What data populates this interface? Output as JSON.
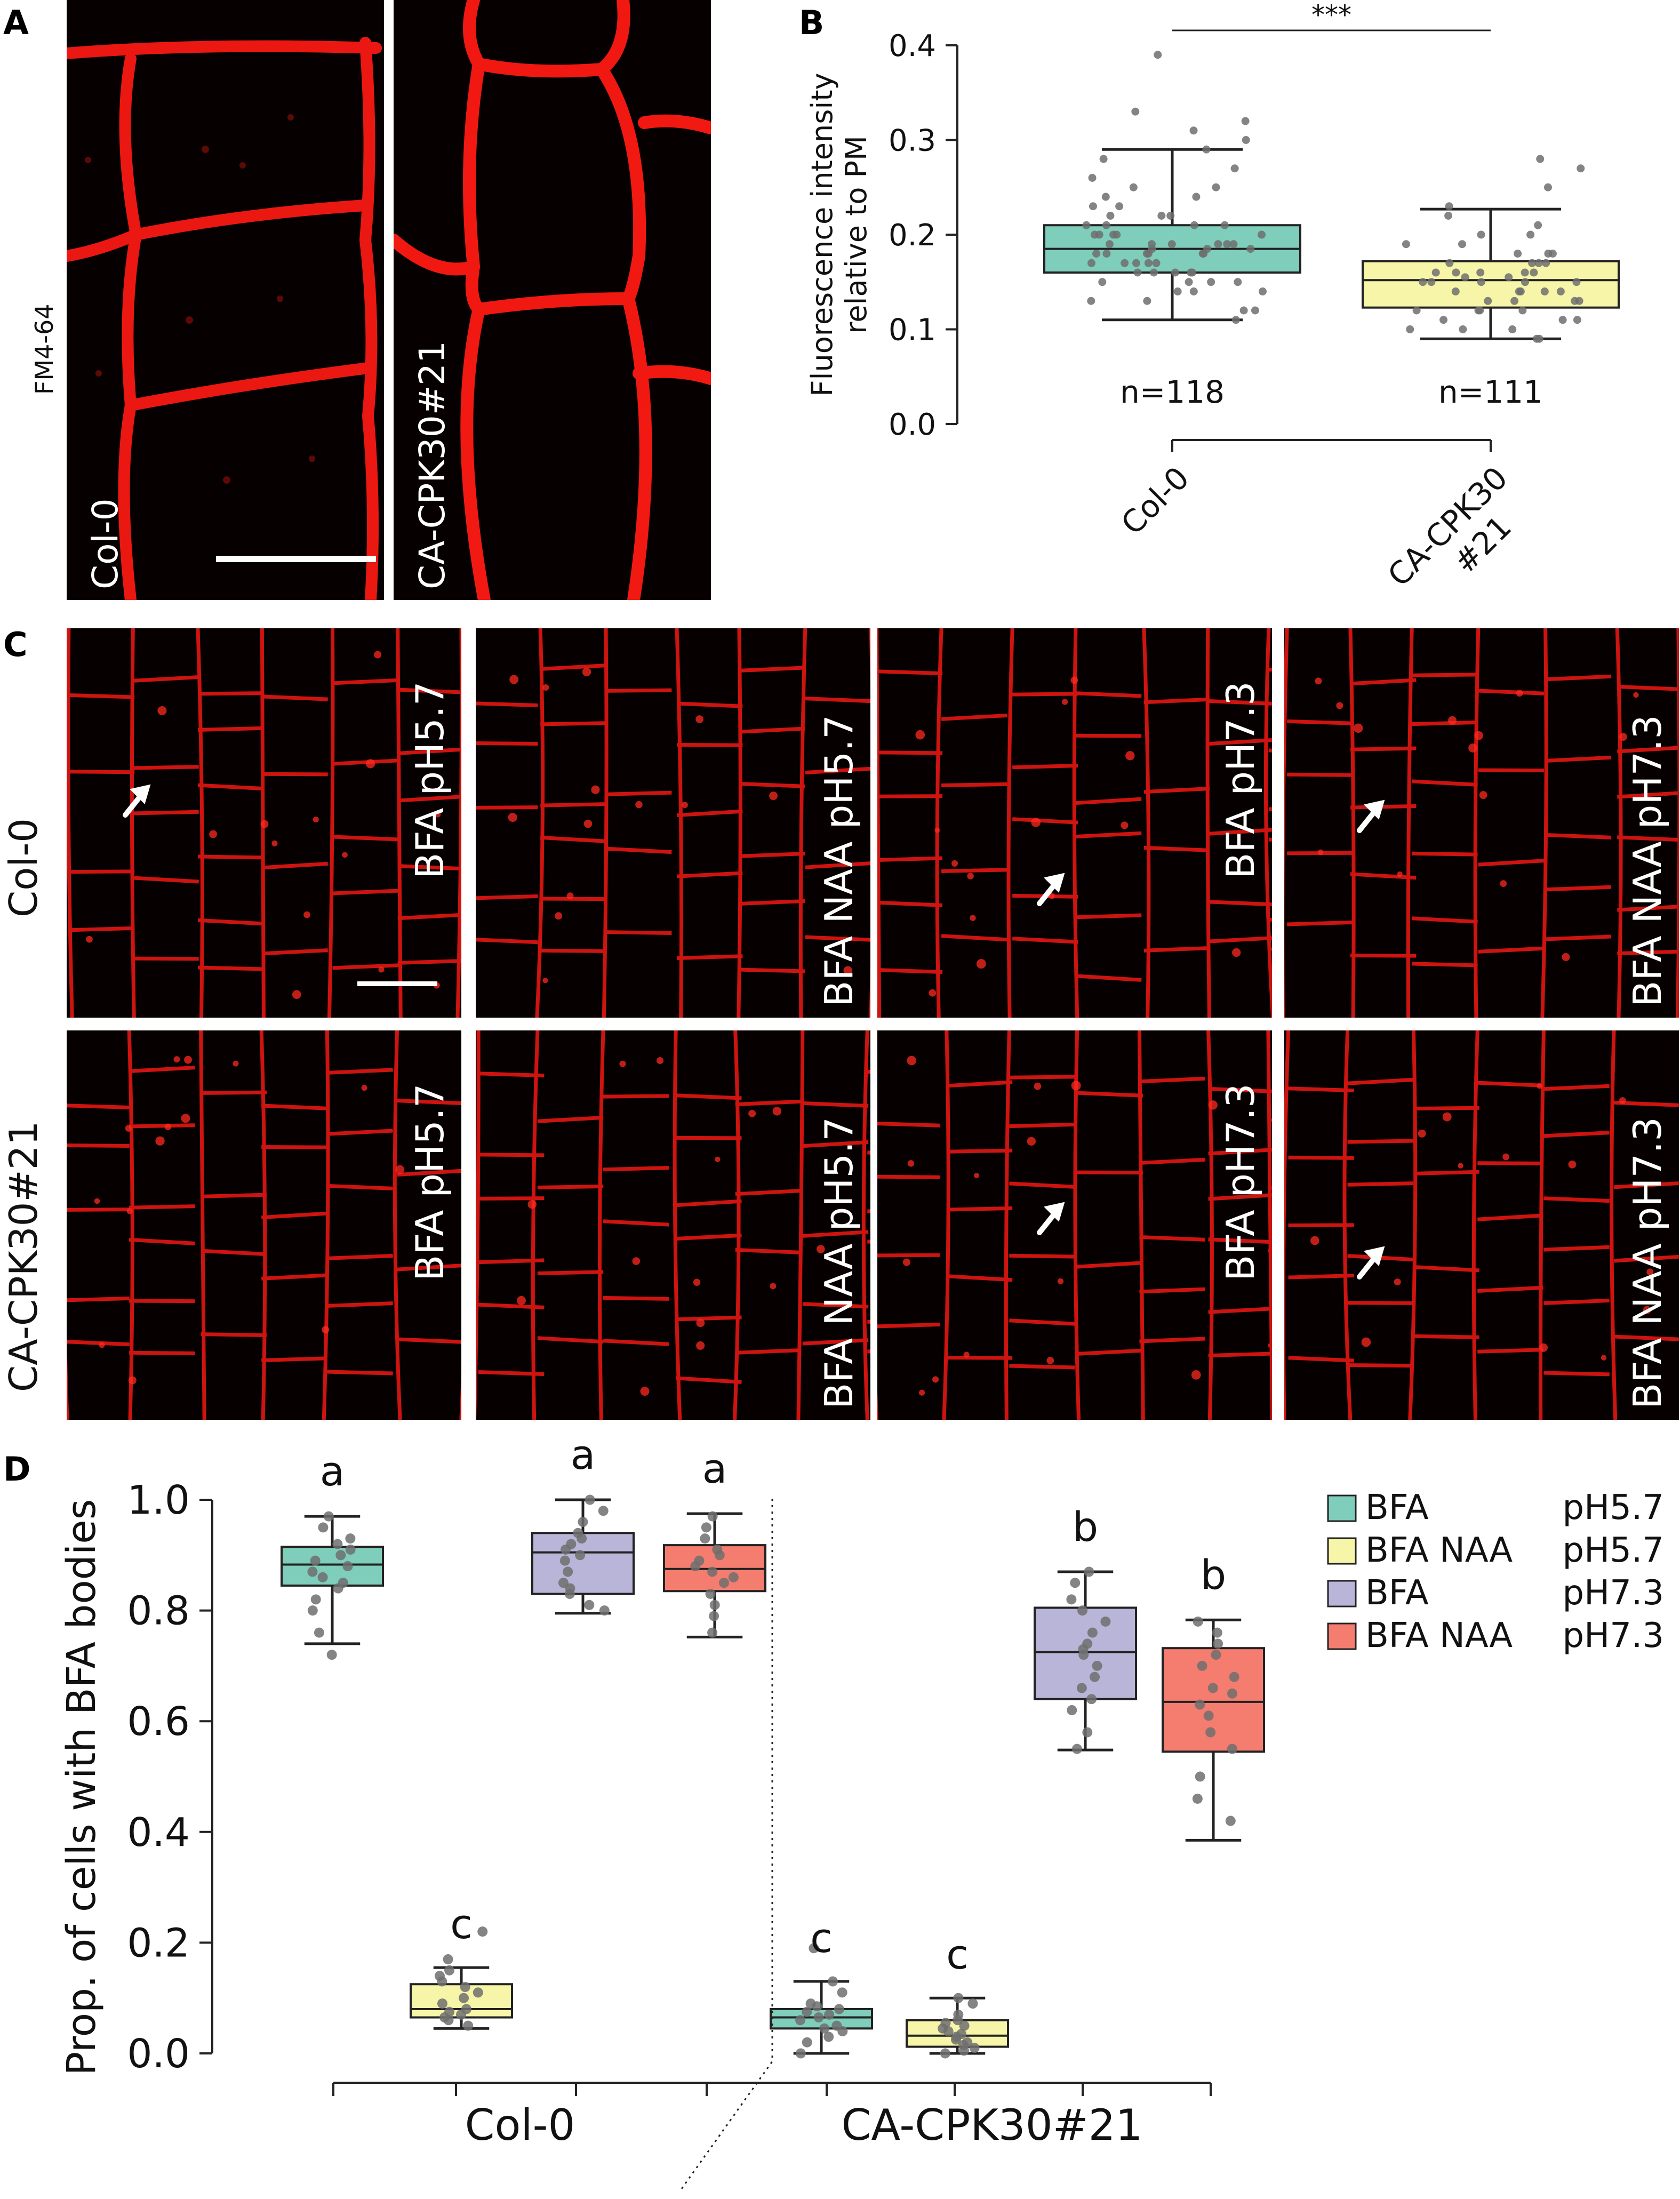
{
  "panels": {
    "A": {
      "letter": "A",
      "stain_label": "FM4-64",
      "images": [
        {
          "label": "Col-0",
          "has_scale_bar": true
        },
        {
          "label": "CA-CPK30#21",
          "has_scale_bar": false
        }
      ]
    },
    "B": {
      "letter": "B"
    },
    "C": {
      "letter": "C",
      "row_labels": [
        "Col-0",
        "CA-CPK30#21"
      ],
      "column_labels": [
        "BFA pH5.7",
        "BFA NAA pH5.7",
        "BFA pH7.3",
        "BFA NAA pH7.3"
      ],
      "arrows_present": [
        [
          true,
          false,
          true,
          true
        ],
        [
          false,
          false,
          true,
          true
        ]
      ]
    },
    "D": {
      "letter": "D"
    }
  },
  "colors": {
    "membrane_red": "#ff1a14",
    "teal": "#7fcdbb",
    "yellow": "#f6f5a8",
    "lavender": "#b9b5d8",
    "salmon": "#f47d70",
    "dot_gray": "#808080"
  },
  "chart_data": [
    {
      "id": "B",
      "type": "box",
      "ylabel_lines": [
        "Fluorescence intensity",
        "relative to PM"
      ],
      "ylim": [
        0.0,
        0.4
      ],
      "yticks": [
        "0.0",
        "0.1",
        "0.2",
        "0.3",
        "0.4"
      ],
      "categories": [
        "Col-0",
        "CA-CPK30 #21"
      ],
      "category_label_lines": [
        [
          "Col-0"
        ],
        [
          "CA-CPK30",
          "#21"
        ]
      ],
      "n_labels": [
        "n=118",
        "n=111"
      ],
      "significance": "***",
      "boxes": [
        {
          "category": "Col-0",
          "whisker_low": 0.11,
          "q1": 0.16,
          "median": 0.185,
          "q3": 0.21,
          "whisker_high": 0.29,
          "color": "#7fcdbb",
          "points": [
            0.39,
            0.33,
            0.32,
            0.31,
            0.3,
            0.29,
            0.28,
            0.27,
            0.26,
            0.25,
            0.25,
            0.24,
            0.24,
            0.23,
            0.23,
            0.22,
            0.22,
            0.22,
            0.21,
            0.21,
            0.21,
            0.21,
            0.2,
            0.2,
            0.2,
            0.2,
            0.2,
            0.19,
            0.19,
            0.19,
            0.19,
            0.19,
            0.19,
            0.185,
            0.185,
            0.185,
            0.18,
            0.18,
            0.18,
            0.18,
            0.18,
            0.18,
            0.17,
            0.17,
            0.17,
            0.17,
            0.17,
            0.16,
            0.16,
            0.16,
            0.16,
            0.16,
            0.15,
            0.15,
            0.15,
            0.15,
            0.14,
            0.14,
            0.14,
            0.13,
            0.13,
            0.12,
            0.12,
            0.11
          ]
        },
        {
          "category": "CA-CPK30 #21",
          "whisker_low": 0.09,
          "q1": 0.123,
          "median": 0.152,
          "q3": 0.172,
          "whisker_high": 0.227,
          "color": "#f6f5a8",
          "points": [
            0.28,
            0.27,
            0.25,
            0.23,
            0.22,
            0.21,
            0.2,
            0.2,
            0.19,
            0.19,
            0.18,
            0.18,
            0.18,
            0.17,
            0.17,
            0.17,
            0.17,
            0.16,
            0.16,
            0.16,
            0.16,
            0.16,
            0.155,
            0.155,
            0.15,
            0.15,
            0.15,
            0.15,
            0.15,
            0.14,
            0.14,
            0.14,
            0.14,
            0.14,
            0.13,
            0.13,
            0.13,
            0.13,
            0.12,
            0.12,
            0.12,
            0.12,
            0.11,
            0.11,
            0.11,
            0.1,
            0.1,
            0.1,
            0.09,
            0.09
          ]
        }
      ]
    },
    {
      "id": "D",
      "type": "box",
      "ylabel": "Prop. of cells with BFA bodies",
      "ylim": [
        0.0,
        1.0
      ],
      "yticks": [
        "0.0",
        "0.2",
        "0.4",
        "0.6",
        "0.8",
        "1.0"
      ],
      "groups": [
        "Col-0",
        "CA-CPK30#21"
      ],
      "legend": [
        {
          "name": "BFA",
          "ph": "pH5.7",
          "color": "#7fcdbb"
        },
        {
          "name": "BFA NAA",
          "ph": "pH5.7",
          "color": "#f6f5a8"
        },
        {
          "name": "BFA",
          "ph": "pH7.3",
          "color": "#b9b5d8"
        },
        {
          "name": "BFA NAA",
          "ph": "pH7.3",
          "color": "#f47d70"
        }
      ],
      "legend_position": "top-right",
      "boxes": [
        {
          "group": "Col-0",
          "treatment": "BFA pH5.7",
          "letter": "a",
          "whisker_low": 0.74,
          "q1": 0.845,
          "median": 0.883,
          "q3": 0.915,
          "whisker_high": 0.97,
          "points": [
            0.97,
            0.95,
            0.93,
            0.92,
            0.91,
            0.9,
            0.89,
            0.88,
            0.87,
            0.86,
            0.85,
            0.84,
            0.82,
            0.8,
            0.76,
            0.72
          ]
        },
        {
          "group": "Col-0",
          "treatment": "BFA NAA pH5.7",
          "letter": "c",
          "whisker_low": 0.045,
          "q1": 0.065,
          "median": 0.08,
          "q3": 0.125,
          "whisker_high": 0.155,
          "points": [
            0.22,
            0.17,
            0.15,
            0.14,
            0.13,
            0.12,
            0.11,
            0.1,
            0.09,
            0.08,
            0.075,
            0.07,
            0.065,
            0.06,
            0.05
          ]
        },
        {
          "group": "Col-0",
          "treatment": "BFA pH7.3",
          "letter": "a",
          "whisker_low": 0.795,
          "q1": 0.83,
          "median": 0.905,
          "q3": 0.94,
          "whisker_high": 1.0,
          "points": [
            1.0,
            0.98,
            0.96,
            0.94,
            0.93,
            0.92,
            0.91,
            0.9,
            0.89,
            0.87,
            0.85,
            0.84,
            0.83,
            0.81,
            0.8
          ]
        },
        {
          "group": "Col-0",
          "treatment": "BFA NAA pH7.3",
          "letter": "a",
          "whisker_low": 0.752,
          "q1": 0.835,
          "median": 0.875,
          "q3": 0.918,
          "whisker_high": 0.975,
          "points": [
            0.97,
            0.95,
            0.93,
            0.91,
            0.9,
            0.89,
            0.88,
            0.87,
            0.86,
            0.85,
            0.83,
            0.81,
            0.79,
            0.76
          ]
        },
        {
          "group": "CA-CPK30#21",
          "treatment": "BFA pH5.7",
          "letter": "c",
          "whisker_low": 0.0,
          "q1": 0.045,
          "median": 0.065,
          "q3": 0.08,
          "whisker_high": 0.13,
          "points": [
            0.19,
            0.13,
            0.11,
            0.09,
            0.085,
            0.08,
            0.075,
            0.07,
            0.065,
            0.06,
            0.05,
            0.045,
            0.04,
            0.03,
            0.02,
            0.0
          ]
        },
        {
          "group": "CA-CPK30#21",
          "treatment": "BFA NAA pH5.7",
          "letter": "c",
          "whisker_low": 0.0,
          "q1": 0.012,
          "median": 0.032,
          "q3": 0.06,
          "whisker_high": 0.1,
          "points": [
            0.1,
            0.09,
            0.07,
            0.06,
            0.055,
            0.05,
            0.045,
            0.04,
            0.035,
            0.03,
            0.025,
            0.02,
            0.015,
            0.01,
            0.005,
            0.0
          ]
        },
        {
          "group": "CA-CPK30#21",
          "treatment": "BFA pH7.3",
          "letter": "b",
          "whisker_low": 0.548,
          "q1": 0.64,
          "median": 0.725,
          "q3": 0.805,
          "whisker_high": 0.87,
          "points": [
            0.87,
            0.85,
            0.82,
            0.8,
            0.78,
            0.76,
            0.74,
            0.73,
            0.72,
            0.7,
            0.68,
            0.66,
            0.64,
            0.62,
            0.58,
            0.55
          ]
        },
        {
          "group": "CA-CPK30#21",
          "treatment": "BFA NAA pH7.3",
          "letter": "b",
          "whisker_low": 0.385,
          "q1": 0.545,
          "median": 0.635,
          "q3": 0.732,
          "whisker_high": 0.783,
          "points": [
            0.78,
            0.76,
            0.74,
            0.72,
            0.7,
            0.68,
            0.66,
            0.65,
            0.63,
            0.61,
            0.58,
            0.55,
            0.5,
            0.46,
            0.42
          ]
        }
      ]
    }
  ]
}
